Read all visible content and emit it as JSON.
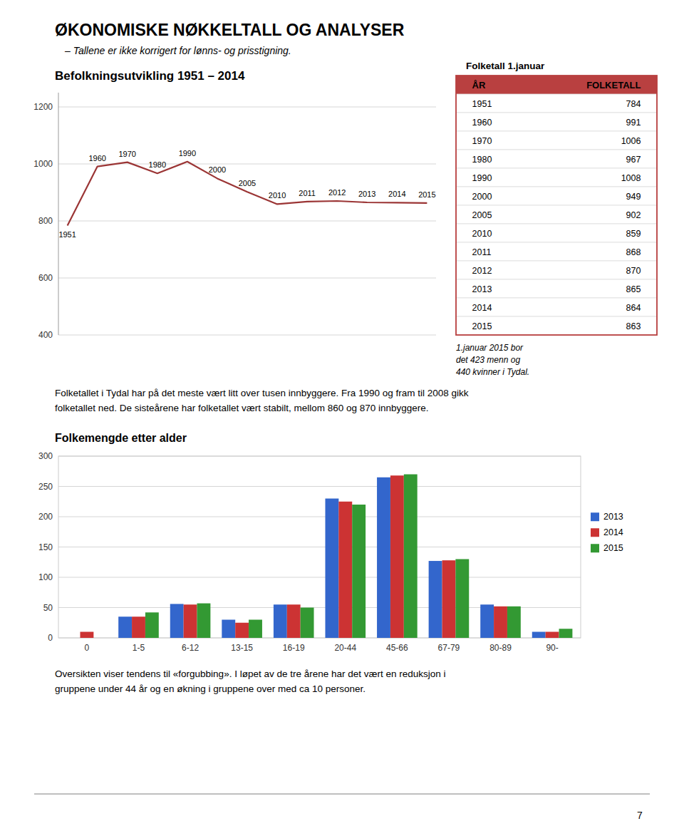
{
  "title": "ØKONOMISKE NØKKELTALL OG ANALYSER",
  "subtitle": "– Tallene er ikke korrigert for lønns- og prisstigning.",
  "chart_data": [
    {
      "type": "line",
      "title": "Befolkningsutvikling 1951 – 2014",
      "categories": [
        "1951",
        "1960",
        "1970",
        "1980",
        "1990",
        "2000",
        "2005",
        "2010",
        "2011",
        "2012",
        "2013",
        "2014",
        "2015"
      ],
      "values": [
        784,
        991,
        1006,
        967,
        1008,
        949,
        902,
        859,
        868,
        870,
        865,
        864,
        863
      ],
      "color": "#9b3535",
      "ylim": [
        400,
        1250
      ],
      "yticks": [
        400,
        600,
        800,
        1000,
        1200
      ],
      "grid": true,
      "tick_labels": "y"
    },
    {
      "type": "bar",
      "title": "Folkemengde etter alder",
      "categories": [
        "0",
        "1-5",
        "6-12",
        "13-15",
        "16-19",
        "20-44",
        "45-66",
        "67-79",
        "80-89",
        "90-"
      ],
      "series": [
        {
          "name": "2013",
          "color": "#3366cc",
          "values": [
            0,
            35,
            56,
            30,
            55,
            230,
            265,
            127,
            55,
            10
          ]
        },
        {
          "name": "2014",
          "color": "#cc3333",
          "values": [
            10,
            35,
            55,
            25,
            55,
            225,
            268,
            128,
            52,
            10
          ]
        },
        {
          "name": "2015",
          "color": "#339933",
          "values": [
            0,
            42,
            57,
            30,
            50,
            220,
            270,
            130,
            52,
            15
          ]
        }
      ],
      "ylim": [
        0,
        300
      ],
      "yticks": [
        0,
        50,
        100,
        150,
        200,
        250,
        300
      ],
      "grid": true,
      "legend": "right"
    }
  ],
  "table": {
    "title": "Folketall 1.januar",
    "color": "#b94040",
    "columns": [
      "ÅR",
      "FOLKETALL"
    ],
    "rows": [
      [
        "1951",
        "784"
      ],
      [
        "1960",
        "991"
      ],
      [
        "1970",
        "1006"
      ],
      [
        "1980",
        "967"
      ],
      [
        "1990",
        "1008"
      ],
      [
        "2000",
        "949"
      ],
      [
        "2005",
        "902"
      ],
      [
        "2010",
        "859"
      ],
      [
        "2011",
        "868"
      ],
      [
        "2012",
        "870"
      ],
      [
        "2013",
        "865"
      ],
      [
        "2014",
        "864"
      ],
      [
        "2015",
        "863"
      ]
    ],
    "note": "1.januar 2015 bor\ndet 423 menn og\n440 kvinner i Tydal."
  },
  "texts": [
    "Folketallet i Tydal har på det meste vært litt over tusen innbyggere. Fra 1990 og fram til 2008 gikk\nfolketallet ned. De sisteårene har folketallet vært stabilt, mellom 860 og 870 innbyggere.",
    "Oversikten viser tendens til «forgubbing». I løpet av de tre årene har det vært en reduksjon i\ngruppene under 44 år og en økning i gruppene over med ca 10 personer."
  ],
  "page_number": "7"
}
